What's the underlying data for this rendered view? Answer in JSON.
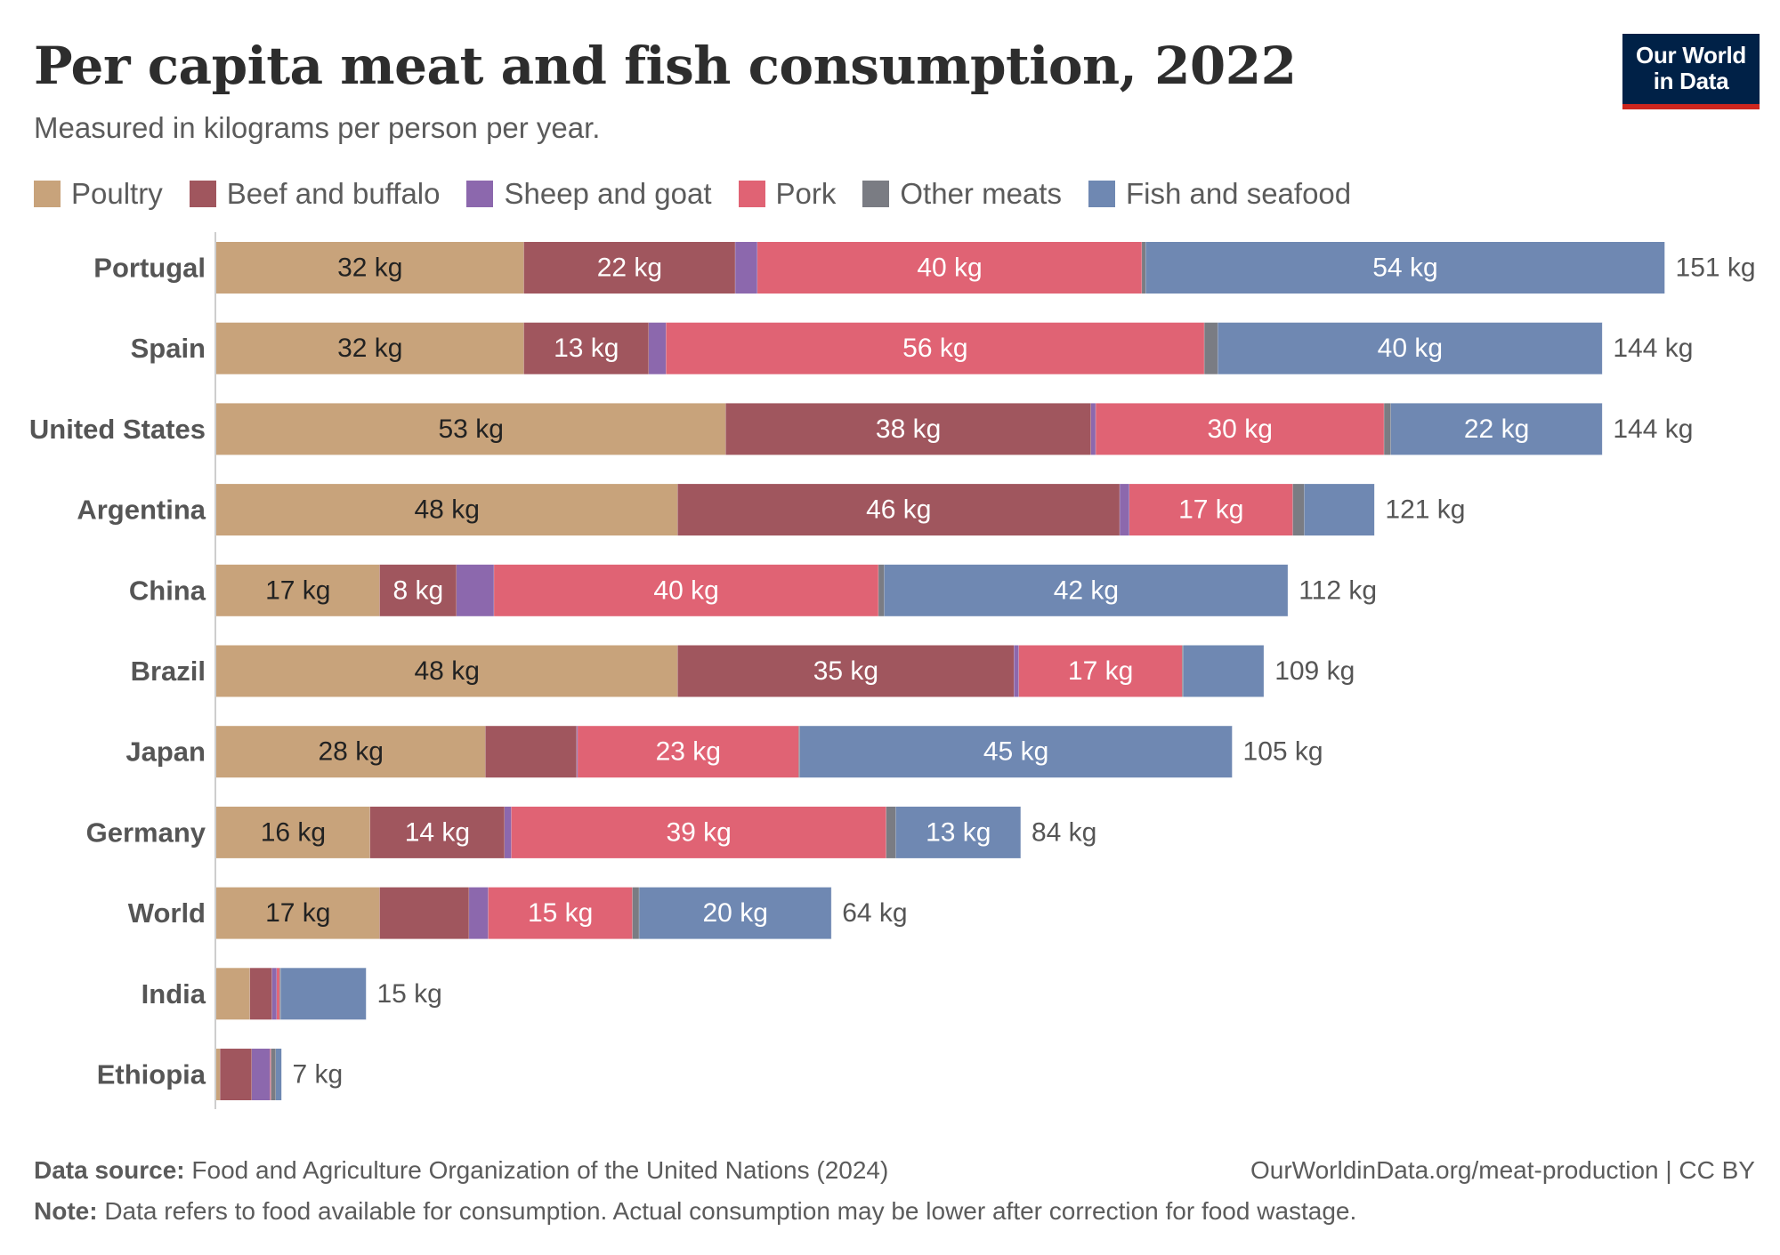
{
  "header": {
    "title": "Per capita meat and fish consumption, 2022",
    "subtitle": "Measured in kilograms per person per year."
  },
  "logo": {
    "line1": "Our World",
    "line2": "in Data"
  },
  "legend": [
    {
      "label": "Poultry",
      "color": "#c8a37b"
    },
    {
      "label": "Beef and buffalo",
      "color": "#a0565e"
    },
    {
      "label": "Sheep and goat",
      "color": "#8c68ad"
    },
    {
      "label": "Pork",
      "color": "#e06374"
    },
    {
      "label": "Other meats",
      "color": "#7a7c83"
    },
    {
      "label": "Fish and seafood",
      "color": "#6f88b2"
    }
  ],
  "chart_data": {
    "type": "bar",
    "orientation": "horizontal",
    "stacked": true,
    "unit": "kg",
    "grid": false,
    "legend_position": "top",
    "categories": [
      "Portugal",
      "Spain",
      "United States",
      "Argentina",
      "China",
      "Brazil",
      "Japan",
      "Germany",
      "World",
      "India",
      "Ethiopia"
    ],
    "series": [
      {
        "name": "Poultry",
        "color": "#c8a37b",
        "values": [
          32,
          32,
          53,
          48,
          17,
          48,
          28,
          16,
          17,
          3.5,
          0.4
        ],
        "labels": [
          "32 kg",
          "32 kg",
          "53 kg",
          "48 kg",
          "17 kg",
          "48 kg",
          "28 kg",
          "16 kg",
          "17 kg",
          "",
          ""
        ]
      },
      {
        "name": "Beef and buffalo",
        "color": "#a0565e",
        "values": [
          22,
          13,
          38,
          46,
          8,
          35,
          9.5,
          14,
          9.3,
          2.3,
          3.3
        ],
        "labels": [
          "22 kg",
          "13 kg",
          "38 kg",
          "46 kg",
          "8 kg",
          "35 kg",
          "",
          "14 kg",
          "",
          "",
          ""
        ]
      },
      {
        "name": "Sheep and goat",
        "color": "#8c68ad",
        "values": [
          2.3,
          1.8,
          0.5,
          1,
          3.9,
          0.5,
          0.1,
          0.7,
          2,
          0.5,
          1.9
        ],
        "labels": [
          "",
          "",
          "",
          "",
          "",
          "",
          "",
          "",
          "",
          "",
          ""
        ]
      },
      {
        "name": "Pork",
        "color": "#e06374",
        "values": [
          40,
          56,
          30,
          17,
          40,
          17,
          23,
          39,
          15,
          0.3,
          0.1
        ],
        "labels": [
          "40 kg",
          "56 kg",
          "30 kg",
          "17 kg",
          "40 kg",
          "17 kg",
          "23 kg",
          "39 kg",
          "15 kg",
          "",
          ""
        ]
      },
      {
        "name": "Other meats",
        "color": "#7a7c83",
        "values": [
          0.4,
          1.4,
          0.7,
          1.2,
          0.6,
          0.1,
          0.1,
          1,
          0.7,
          0.1,
          0.5
        ],
        "labels": [
          "",
          "",
          "",
          "",
          "",
          "",
          "",
          "",
          "",
          "",
          ""
        ]
      },
      {
        "name": "Fish and seafood",
        "color": "#6f88b2",
        "values": [
          54,
          40,
          22,
          7.3,
          42,
          8.4,
          45,
          13,
          20,
          8.9,
          0.6
        ],
        "labels": [
          "54 kg",
          "40 kg",
          "22 kg",
          "",
          "42 kg",
          "",
          "45 kg",
          "13 kg",
          "20 kg",
          "",
          ""
        ]
      }
    ],
    "totals": [
      "151 kg",
      "144 kg",
      "144 kg",
      "121 kg",
      "112 kg",
      "109 kg",
      "105 kg",
      "84 kg",
      "64 kg",
      "15 kg",
      "7 kg"
    ],
    "xlim": [
      0,
      151
    ]
  },
  "footer": {
    "source_label": "Data source:",
    "source_text": "Food and Agriculture Organization of the United Nations (2024)",
    "note_label": "Note:",
    "note_text": "Data refers to food available for consumption. Actual consumption may be lower after correction for food wastage.",
    "url": "OurWorldinData.org/meat-production | CC BY"
  }
}
